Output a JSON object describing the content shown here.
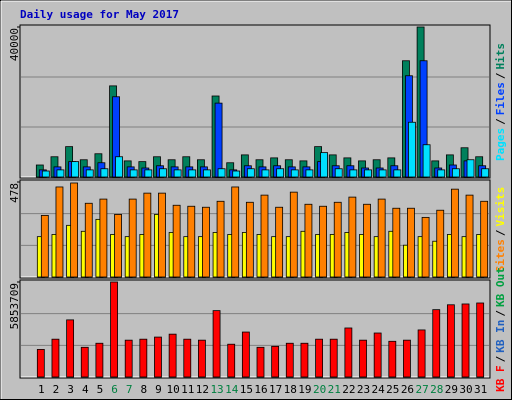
{
  "chart_data": [
    {
      "type": "bar",
      "title": "Daily usage for May 2017",
      "ylim": [
        0,
        40000
      ],
      "yticks": [
        40000
      ],
      "legend_separator": "/",
      "series": [
        {
          "name": "Hits",
          "color": "#00805c",
          "values": [
            3200,
            5400,
            8100,
            4600,
            6200,
            24300,
            4300,
            4100,
            5400,
            4600,
            5400,
            4600,
            21600,
            3800,
            5900,
            4600,
            5100,
            4600,
            4300,
            8100,
            5900,
            5100,
            4300,
            4600,
            5100,
            31000,
            40000,
            4300,
            5900,
            7800,
            5400
          ]
        },
        {
          "name": "Files",
          "color": "#0040ff",
          "values": [
            1900,
            2700,
            4100,
            2700,
            3800,
            21400,
            2700,
            2400,
            3000,
            2700,
            2700,
            2700,
            19700,
            1900,
            3000,
            2700,
            3000,
            2700,
            2700,
            4100,
            3000,
            3000,
            2400,
            2400,
            3000,
            27000,
            31000,
            2400,
            3200,
            4300,
            3000
          ]
        },
        {
          "name": "Pages",
          "color": "#00e0ff",
          "values": [
            1600,
            1900,
            4100,
            1900,
            2200,
            5400,
            1900,
            1900,
            2200,
            1900,
            1900,
            1900,
            2200,
            1600,
            2200,
            1900,
            2200,
            1900,
            1900,
            6500,
            2200,
            1900,
            1900,
            1900,
            1900,
            14600,
            8600,
            1900,
            2200,
            4600,
            2200
          ]
        }
      ]
    },
    {
      "type": "bar",
      "ylim": [
        0,
        478
      ],
      "yticks": [
        478
      ],
      "legend_separator": "/",
      "series": [
        {
          "name": "Visits",
          "color": "#ffff00",
          "values": [
            203,
            214,
            260,
            230,
            290,
            214,
            203,
            214,
            315,
            224,
            203,
            203,
            224,
            214,
            224,
            214,
            203,
            203,
            230,
            214,
            214,
            224,
            214,
            203,
            230,
            160,
            203,
            180,
            214,
            203,
            214
          ]
        },
        {
          "name": "Sites",
          "color": "#ff8000",
          "values": [
            310,
            453,
            473,
            371,
            392,
            315,
            392,
            422,
            422,
            361,
            356,
            351,
            381,
            453,
            376,
            412,
            351,
            427,
            366,
            356,
            376,
            402,
            366,
            392,
            346,
            346,
            300,
            336,
            442,
            412,
            381
          ]
        }
      ]
    },
    {
      "type": "bar",
      "ylim": [
        0,
        5853709
      ],
      "yticks": [
        5853709
      ],
      "legend_separator": "/",
      "categories": [
        "1",
        "2",
        "3",
        "4",
        "5",
        "6",
        "7",
        "8",
        "9",
        "10",
        "11",
        "12",
        "13",
        "14",
        "15",
        "16",
        "17",
        "18",
        "19",
        "20",
        "21",
        "22",
        "23",
        "24",
        "25",
        "26",
        "27",
        "28",
        "29",
        "30",
        "31"
      ],
      "weekend_indices": [
        5,
        6,
        12,
        13,
        19,
        20,
        26,
        27
      ],
      "weekday_color": "#000000",
      "weekend_color": "#008040",
      "series": [
        {
          "name": "KB F",
          "color": "#ff0000",
          "values": [
            1700000,
            2330000,
            3520000,
            1830000,
            2080000,
            5853709,
            2270000,
            2330000,
            2460000,
            2640000,
            2330000,
            2270000,
            4090000,
            2020000,
            2770000,
            1830000,
            1890000,
            2080000,
            2080000,
            2330000,
            2330000,
            3020000,
            2270000,
            2710000,
            2200000,
            2270000,
            2900000,
            4150000,
            4450000,
            4500000,
            4560000
          ]
        }
      ],
      "legend_more": [
        {
          "name": "KB In",
          "color": "#2060c0"
        },
        {
          "name": "KB Out",
          "color": "#00a040"
        }
      ]
    }
  ]
}
